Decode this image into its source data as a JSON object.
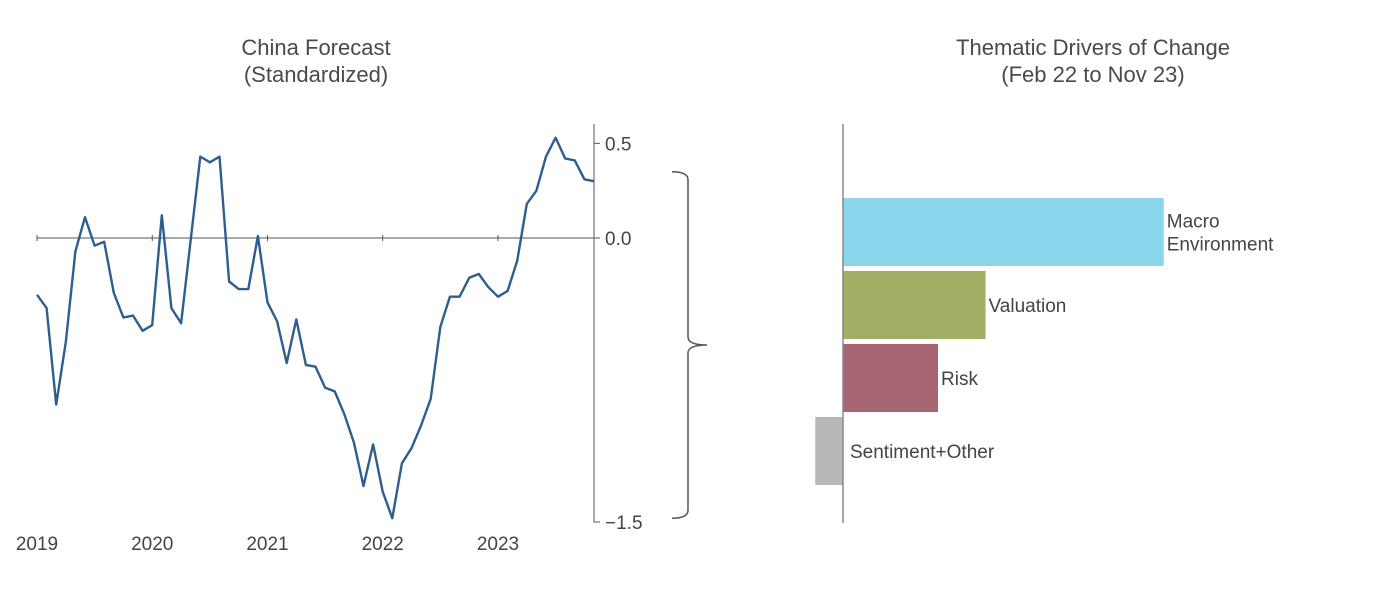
{
  "chart_data": [
    {
      "type": "line",
      "title": "China Forecast",
      "subtitle": "(Standardized)",
      "x_tick_labels": [
        "2019",
        "2020",
        "2021",
        "2022",
        "2023"
      ],
      "y_tick_labels": [
        "0.5",
        "0.0",
        "−1.5"
      ],
      "y_ticks": [
        0.5,
        0.0,
        -1.5
      ],
      "ylim": [
        -1.5,
        0.55
      ],
      "xlim": [
        "2019-01",
        "2023-11"
      ],
      "y_axis_position": "right",
      "series": [
        {
          "color": "#2e5e8e",
          "x": [
            "2019-01",
            "2019-02",
            "2019-03",
            "2019-04",
            "2019-05",
            "2019-06",
            "2019-07",
            "2019-08",
            "2019-09",
            "2019-10",
            "2019-11",
            "2019-12",
            "2020-01",
            "2020-02",
            "2020-03",
            "2020-04",
            "2020-05",
            "2020-06",
            "2020-07",
            "2020-08",
            "2020-09",
            "2020-10",
            "2020-11",
            "2020-12",
            "2021-01",
            "2021-02",
            "2021-03",
            "2021-04",
            "2021-05",
            "2021-06",
            "2021-07",
            "2021-08",
            "2021-09",
            "2021-10",
            "2021-11",
            "2021-12",
            "2022-01",
            "2022-02",
            "2022-03",
            "2022-04",
            "2022-05",
            "2022-06",
            "2022-07",
            "2022-08",
            "2022-09",
            "2022-10",
            "2022-11",
            "2022-12",
            "2023-01",
            "2023-02",
            "2023-03",
            "2023-04",
            "2023-05",
            "2023-06",
            "2023-07",
            "2023-08",
            "2023-09",
            "2023-10",
            "2023-11"
          ],
          "y": [
            -0.3,
            -0.37,
            -0.88,
            -0.55,
            -0.07,
            0.11,
            -0.04,
            -0.02,
            -0.29,
            -0.42,
            -0.41,
            -0.49,
            -0.46,
            0.12,
            -0.37,
            -0.45,
            -0.01,
            0.43,
            0.4,
            0.43,
            -0.23,
            -0.27,
            -0.27,
            0.01,
            -0.34,
            -0.44,
            -0.66,
            -0.43,
            -0.67,
            -0.68,
            -0.79,
            -0.81,
            -0.93,
            -1.08,
            -1.31,
            -1.09,
            -1.34,
            -1.48,
            -1.19,
            -1.11,
            -0.99,
            -0.85,
            -0.47,
            -0.31,
            -0.31,
            -0.21,
            -0.19,
            -0.26,
            -0.31,
            -0.28,
            -0.12,
            0.18,
            0.25,
            0.43,
            0.53,
            0.42,
            0.41,
            0.31,
            0.3
          ]
        }
      ],
      "bracket": {
        "from": 0.35,
        "to": -1.48
      }
    },
    {
      "type": "bar",
      "orientation": "horizontal",
      "title": "Thematic Drivers of Change",
      "subtitle": "(Feb 22 to Nov 23)",
      "categories": [
        {
          "lines": [
            "Macro",
            "Environment"
          ]
        },
        {
          "lines": [
            "Valuation"
          ]
        },
        {
          "lines": [
            "Risk"
          ]
        },
        {
          "lines": [
            "Sentiment+Other"
          ]
        }
      ],
      "values": [
        0.81,
        0.36,
        0.24,
        -0.07
      ],
      "colors": [
        "#89d5ec",
        "#a2ae66",
        "#a66571",
        "#b8b8b8"
      ],
      "xlim": [
        -0.09,
        1.0
      ],
      "axis_color": "#888888"
    }
  ]
}
